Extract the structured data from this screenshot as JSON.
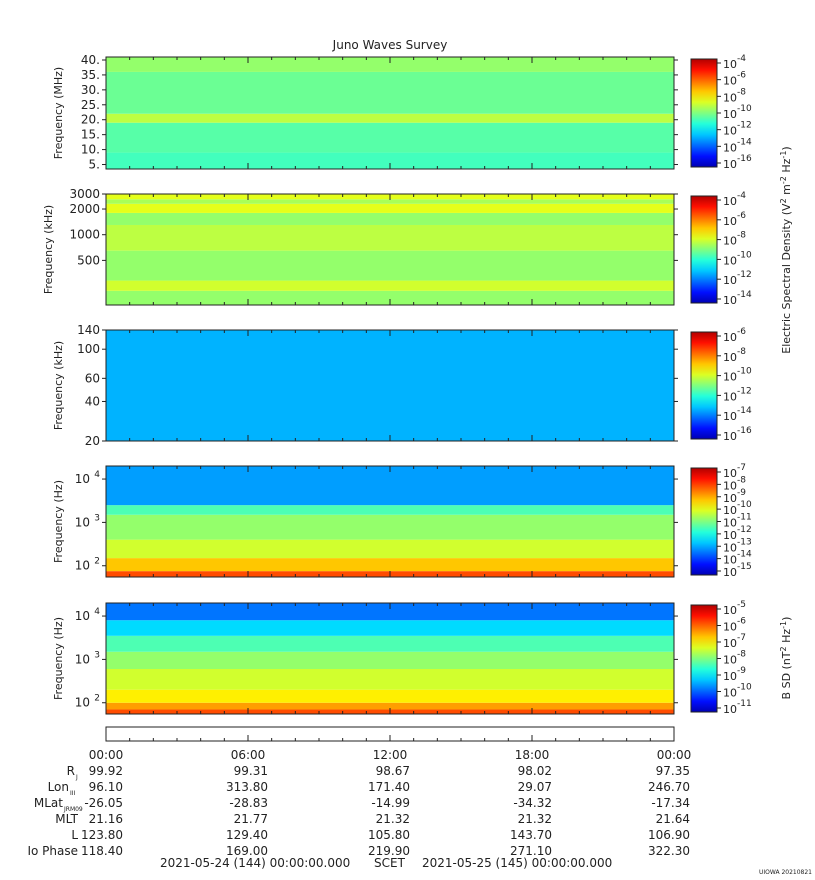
{
  "title": "Juno Waves Survey",
  "watermark": "UIOWA 20210821",
  "colors": {
    "bg": "#ffffff",
    "axis": "#222222"
  },
  "chart_data": [
    {
      "type": "heatmap",
      "id": "p1",
      "ylabel": "Frequency (MHz)",
      "yscale": "linear",
      "ylim": [
        3.5,
        41
      ],
      "yticks": [
        {
          "v": 5,
          "label": "5."
        },
        {
          "v": 10,
          "label": "10."
        },
        {
          "v": 15,
          "label": "15."
        },
        {
          "v": 20,
          "label": "20."
        },
        {
          "v": 25,
          "label": "25."
        },
        {
          "v": 30,
          "label": "30."
        },
        {
          "v": 35,
          "label": "35."
        },
        {
          "v": 40,
          "label": "40."
        }
      ],
      "bands": [
        {
          "from": 3.5,
          "to": 9,
          "level": 0.44
        },
        {
          "from": 9,
          "to": 19,
          "level": 0.46
        },
        {
          "from": 19,
          "to": 22,
          "level": 0.56
        },
        {
          "from": 22,
          "to": 36,
          "level": 0.48
        },
        {
          "from": 36,
          "to": 41,
          "level": 0.52
        }
      ]
    },
    {
      "type": "heatmap",
      "id": "p2",
      "ylabel": "Frequency (kHz)",
      "yscale": "log",
      "ylim": [
        150,
        3000
      ],
      "yticks": [
        {
          "v": 500,
          "label": "500"
        },
        {
          "v": 1000,
          "label": "1000"
        },
        {
          "v": 2000,
          "label": "2000"
        },
        {
          "v": 3000,
          "label": "3000"
        }
      ],
      "bands": [
        {
          "from": 150,
          "to": 220,
          "level": 0.52
        },
        {
          "from": 220,
          "to": 290,
          "level": 0.58
        },
        {
          "from": 290,
          "to": 650,
          "level": 0.52
        },
        {
          "from": 650,
          "to": 1300,
          "level": 0.56
        },
        {
          "from": 1300,
          "to": 1800,
          "level": 0.52
        },
        {
          "from": 1800,
          "to": 2300,
          "level": 0.6
        },
        {
          "from": 2300,
          "to": 2600,
          "level": 0.54
        },
        {
          "from": 2600,
          "to": 3000,
          "level": 0.6
        }
      ]
    },
    {
      "type": "heatmap",
      "id": "p3",
      "ylabel": "Frequency (kHz)",
      "yscale": "log",
      "ylim": [
        20,
        140
      ],
      "yticks": [
        {
          "v": 20,
          "label": "20"
        },
        {
          "v": 40,
          "label": "40"
        },
        {
          "v": 60,
          "label": "60"
        },
        {
          "v": 100,
          "label": "100"
        },
        {
          "v": 140,
          "label": "140"
        }
      ],
      "bands": [
        {
          "from": 20,
          "to": 140,
          "level": 0.3
        }
      ]
    },
    {
      "type": "heatmap",
      "id": "p4",
      "ylabel": "Frequency (Hz)",
      "yscale": "log",
      "ylim": [
        55,
        20000
      ],
      "yticks": [
        {
          "v": 100,
          "label": "10",
          "sup": "2"
        },
        {
          "v": 1000,
          "label": "10",
          "sup": "3"
        },
        {
          "v": 10000,
          "label": "10",
          "sup": "4"
        }
      ],
      "bands": [
        {
          "from": 55,
          "to": 75,
          "level": 0.8
        },
        {
          "from": 75,
          "to": 150,
          "level": 0.68
        },
        {
          "from": 150,
          "to": 400,
          "level": 0.58
        },
        {
          "from": 400,
          "to": 1500,
          "level": 0.52
        },
        {
          "from": 1500,
          "to": 2500,
          "level": 0.45
        },
        {
          "from": 2500,
          "to": 20000,
          "level": 0.28
        }
      ]
    },
    {
      "type": "heatmap",
      "id": "p5",
      "ylabel": "Frequency (Hz)",
      "yscale": "log",
      "ylim": [
        55,
        20000
      ],
      "yticks": [
        {
          "v": 100,
          "label": "10",
          "sup": "2"
        },
        {
          "v": 1000,
          "label": "10",
          "sup": "3"
        },
        {
          "v": 10000,
          "label": "10",
          "sup": "4"
        }
      ],
      "bands": [
        {
          "from": 55,
          "to": 70,
          "level": 0.8
        },
        {
          "from": 70,
          "to": 100,
          "level": 0.72
        },
        {
          "from": 100,
          "to": 200,
          "level": 0.64
        },
        {
          "from": 200,
          "to": 600,
          "level": 0.58
        },
        {
          "from": 600,
          "to": 1500,
          "level": 0.52
        },
        {
          "from": 1500,
          "to": 3500,
          "level": 0.45
        },
        {
          "from": 3500,
          "to": 8000,
          "level": 0.34
        },
        {
          "from": 8000,
          "to": 20000,
          "level": 0.24
        }
      ]
    }
  ],
  "colorbars": [
    {
      "id": "c1",
      "labels": [
        {
          "base": "10",
          "sup": "-4"
        },
        {
          "base": "10",
          "sup": "-6"
        },
        {
          "base": "10",
          "sup": "-8"
        },
        {
          "base": "10",
          "sup": "-10"
        },
        {
          "base": "10",
          "sup": "-12"
        },
        {
          "base": "10",
          "sup": "-14"
        },
        {
          "base": "10",
          "sup": "-16"
        }
      ]
    },
    {
      "id": "c2",
      "labels": [
        {
          "base": "10",
          "sup": "-4"
        },
        {
          "base": "10",
          "sup": "-6"
        },
        {
          "base": "10",
          "sup": "-8"
        },
        {
          "base": "10",
          "sup": "-10"
        },
        {
          "base": "10",
          "sup": "-12"
        },
        {
          "base": "10",
          "sup": "-14"
        }
      ]
    },
    {
      "id": "c3",
      "labels": [
        {
          "base": "10",
          "sup": "-6"
        },
        {
          "base": "10",
          "sup": "-8"
        },
        {
          "base": "10",
          "sup": "-10"
        },
        {
          "base": "10",
          "sup": "-12"
        },
        {
          "base": "10",
          "sup": "-14"
        },
        {
          "base": "10",
          "sup": "-16"
        }
      ]
    },
    {
      "id": "c4",
      "labels": [
        {
          "base": "10",
          "sup": "-7"
        },
        {
          "base": "10",
          "sup": "-8"
        },
        {
          "base": "10",
          "sup": "-9"
        },
        {
          "base": "10",
          "sup": "-10"
        },
        {
          "base": "10",
          "sup": "-11"
        },
        {
          "base": "10",
          "sup": "-12"
        },
        {
          "base": "10",
          "sup": "-13"
        },
        {
          "base": "10",
          "sup": "-14"
        },
        {
          "base": "10",
          "sup": "-15"
        }
      ]
    },
    {
      "id": "c5",
      "labels": [
        {
          "base": "10",
          "sup": "-5"
        },
        {
          "base": "10",
          "sup": "-6"
        },
        {
          "base": "10",
          "sup": "-7"
        },
        {
          "base": "10",
          "sup": "-8"
        },
        {
          "base": "10",
          "sup": "-9"
        },
        {
          "base": "10",
          "sup": "-10"
        },
        {
          "base": "10",
          "sup": "-11"
        }
      ]
    }
  ],
  "colorbar_titles": {
    "electric": {
      "pre": "Electric Spectral Density (V",
      "s1": "2",
      "mid": " m",
      "s2": "-2",
      "mid2": " Hz",
      "s3": "-1",
      "post": ")"
    },
    "magnetic": {
      "pre": "B SD (nT",
      "s1": "2",
      "mid": " Hz",
      "s2": "-1",
      "post": ")"
    }
  },
  "time_axis": {
    "labels": [
      "00:00",
      "06:00",
      "12:00",
      "18:00",
      "00:00"
    ]
  },
  "ephemeris": [
    {
      "name": "R",
      "sub": "J",
      "values": [
        "99.92",
        "99.31",
        "98.67",
        "98.02",
        "97.35"
      ]
    },
    {
      "name": "Lon",
      "sub": "III",
      "values": [
        "96.10",
        "313.80",
        "171.40",
        "29.07",
        "246.70"
      ]
    },
    {
      "name": "MLat",
      "sub": "JRM09",
      "values": [
        "-26.05",
        "-28.83",
        "-14.99",
        "-34.32",
        "-17.34"
      ]
    },
    {
      "name": "MLT",
      "sub": "",
      "values": [
        "21.16",
        "21.77",
        "21.32",
        "21.32",
        "21.64"
      ]
    },
    {
      "name": "L",
      "sub": "",
      "values": [
        "123.80",
        "129.40",
        "105.80",
        "143.70",
        "106.90"
      ]
    },
    {
      "name": "Io Phase",
      "sub": "",
      "values": [
        "118.40",
        "169.00",
        "219.90",
        "271.10",
        "322.30"
      ]
    }
  ],
  "footer": {
    "start": "2021-05-24 (144) 00:00:00.000",
    "scet": "SCET",
    "end": "2021-05-25 (145) 00:00:00.000"
  }
}
